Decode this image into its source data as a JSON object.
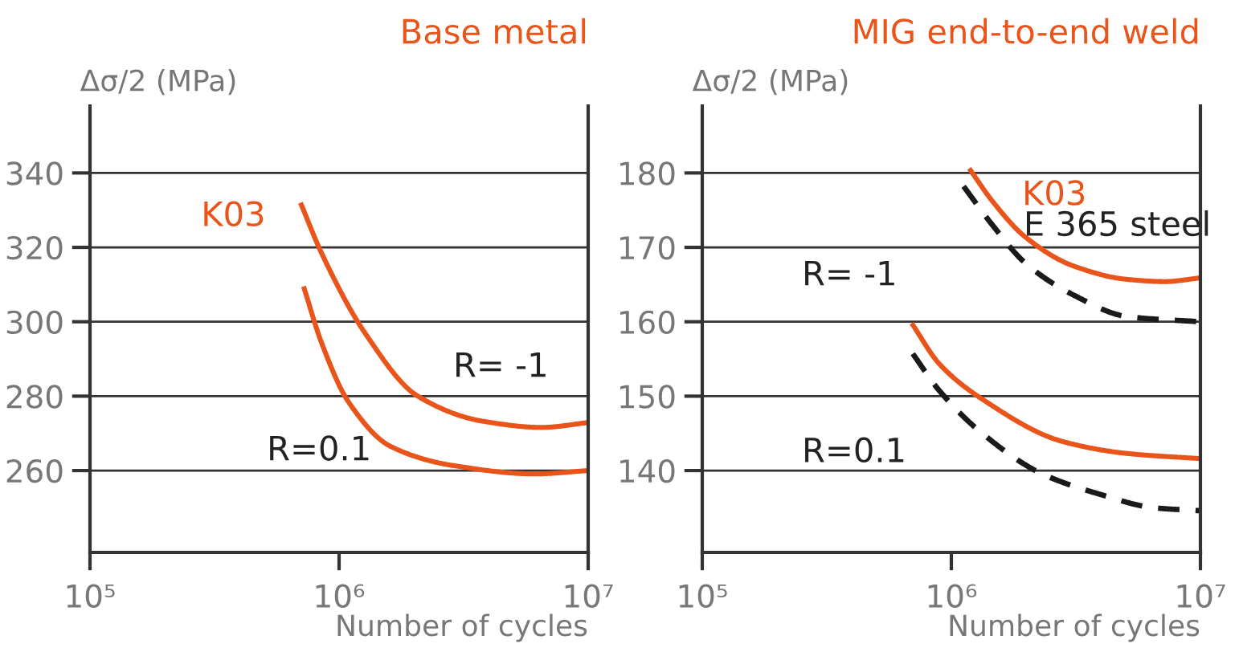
{
  "chart_data": [
    {
      "type": "line",
      "title": "Base metal",
      "ylabel": "Δσ/2 (MPa)",
      "xlabel": "Number of cycles",
      "log": "x",
      "grid": "y",
      "marker": "none",
      "xlim": [
        100000,
        10000000
      ],
      "xticks": [
        {
          "value": 100000,
          "label": "10⁵"
        },
        {
          "value": 1000000,
          "label": "10⁶"
        },
        {
          "value": 10000000,
          "label": "10⁷"
        }
      ],
      "ylim": [
        238,
        358
      ],
      "yticks": [
        260,
        280,
        300,
        320,
        340
      ],
      "series": [
        {
          "name": "R= -1",
          "color": "#e8541a",
          "line_style": "solid",
          "x": [
            700000,
            850000,
            1270000,
            2070000,
            3750000,
            6500000,
            10000000
          ],
          "values": [
            332,
            318.5,
            297,
            280,
            273.3,
            271.6,
            272.9
          ]
        },
        {
          "name": "R=0.1",
          "color": "#e8541a",
          "line_style": "solid",
          "x": [
            720000,
            850000,
            1090000,
            1610000,
            2900000,
            6100000,
            10000000
          ],
          "values": [
            309.5,
            294.4,
            278.5,
            266.5,
            261.3,
            259.1,
            260
          ]
        }
      ],
      "annotations": [
        "K03"
      ]
    },
    {
      "type": "line",
      "title": "MIG end-to-end weld",
      "ylabel": "Δσ/2 (MPa)",
      "xlabel": "Number of cycles",
      "log": "x",
      "grid": "y",
      "marker": "none",
      "xlim": [
        100000,
        10000000
      ],
      "xticks": [
        {
          "value": 100000,
          "label": "10⁵"
        },
        {
          "value": 1000000,
          "label": "10⁶"
        },
        {
          "value": 10000000,
          "label": "10⁷"
        }
      ],
      "ylim": [
        129,
        189
      ],
      "yticks": [
        140,
        150,
        160,
        170,
        180
      ],
      "series": [
        {
          "color": "#e8541a",
          "line_style": "solid",
          "x": [
            1180000,
            1470000,
            1980000,
            3090000,
            5070000,
            7180000,
            10000000
          ],
          "values": [
            180.6,
            176.1,
            171.4,
            167.5,
            165.7,
            165.4,
            165.9
          ]
        },
        {
          "color": "#1a1a1a",
          "line_style": "dashed",
          "x": [
            1120000,
            1470000,
            1980000,
            3090000,
            5070000,
            10000000
          ],
          "values": [
            178.2,
            172.9,
            167.9,
            163.6,
            160.7,
            160
          ]
        },
        {
          "name": "R=0.1",
          "color": "#e8541a",
          "line_style": "solid",
          "x": [
            693000,
            897000,
            1330000,
            2800000,
            5070000,
            10000000
          ],
          "values": [
            159.8,
            154.3,
            149.6,
            143.9,
            142.3,
            141.6
          ]
        },
        {
          "color": "#1a1a1a",
          "line_style": "dashed",
          "x": [
            700000,
            897000,
            1330000,
            2300000,
            3960000,
            6500000,
            10000000
          ],
          "values": [
            155.7,
            150.7,
            145,
            139.6,
            136.8,
            135,
            134.6
          ]
        }
      ],
      "annotations": [
        "K03",
        "E 365 steel",
        "R= -1"
      ]
    }
  ]
}
